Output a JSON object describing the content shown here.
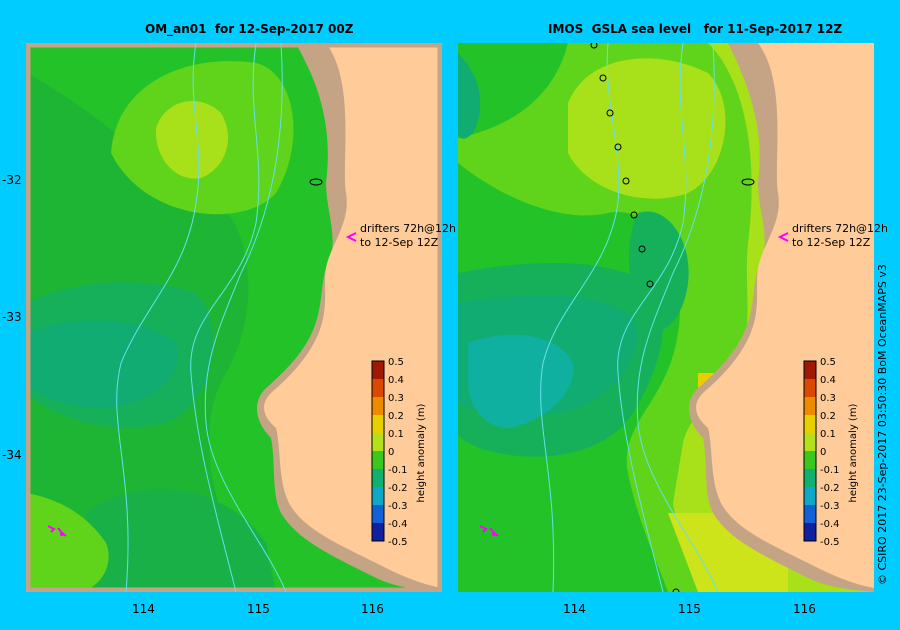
{
  "left_panel": {
    "title": "OM_an01  for 12-Sep-2017 00Z",
    "drifter_note_line1": "drifters 72h@12h",
    "drifter_note_line2": "to 12-Sep 12Z"
  },
  "right_panel": {
    "title": "IMOS  GSLA sea level   for 11-Sep-2017 12Z",
    "drifter_note_line1": "drifters 72h@12h",
    "drifter_note_line2": "to 12-Sep 12Z"
  },
  "colorbar": {
    "label": "height anomaly (m)",
    "ticks": [
      "0.5",
      "0.4",
      "0.3",
      "0.2",
      "0.1",
      "0",
      "-0.1",
      "-0.2",
      "-0.3",
      "-0.4",
      "-0.5"
    ]
  },
  "lat_labels": [
    "-32",
    "-33",
    "-34"
  ],
  "lon_labels": [
    "114",
    "115",
    "116"
  ],
  "copyright": "© CSIRO 2017   23-Sep-2017 03:50:30 BoM OceanMAPS v3",
  "colors": {
    "background": "#00ccff",
    "land": "#ffcc99",
    "shelf": "#c4a484",
    "drifter": "#ff00ff"
  }
}
